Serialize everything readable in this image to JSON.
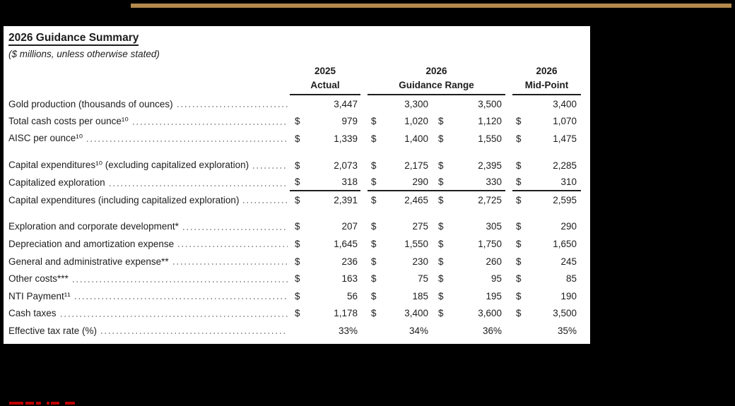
{
  "panel": {
    "title": "2026 Guidance Summary",
    "subtitle": "($ millions, unless otherwise stated)"
  },
  "table": {
    "currency_symbol": "$",
    "columns": [
      {
        "line1": "2025",
        "line2": "Actual"
      },
      {
        "line1": "2026",
        "line2": "Guidance Range"
      },
      {
        "line1": "2026",
        "line2": "Mid-Point"
      }
    ],
    "groups": [
      {
        "rows": [
          {
            "label": "Gold production (thousands of ounces)",
            "dollar": false,
            "underline": false,
            "values": [
              "3,447",
              "3,300",
              "3,500",
              "3,400"
            ]
          },
          {
            "label": "Total cash costs per ounce¹⁰",
            "dollar": true,
            "underline": false,
            "values": [
              "979",
              "1,020",
              "1,120",
              "1,070"
            ]
          },
          {
            "label": "AISC per ounce¹⁰",
            "dollar": true,
            "underline": false,
            "values": [
              "1,339",
              "1,400",
              "1,550",
              "1,475"
            ]
          }
        ]
      },
      {
        "rows": [
          {
            "label": "Capital expenditures¹⁰ (excluding capitalized exploration)",
            "dollar": true,
            "underline": false,
            "values": [
              "2,073",
              "2,175",
              "2,395",
              "2,285"
            ]
          },
          {
            "label": "Capitalized exploration",
            "dollar": true,
            "underline": true,
            "values": [
              "318",
              "290",
              "330",
              "310"
            ]
          },
          {
            "label": "Capital expenditures (including capitalized exploration)",
            "dollar": true,
            "underline": false,
            "values": [
              "2,391",
              "2,465",
              "2,725",
              "2,595"
            ]
          }
        ]
      },
      {
        "rows": [
          {
            "label": "Exploration and corporate development*",
            "dollar": true,
            "underline": false,
            "values": [
              "207",
              "275",
              "305",
              "290"
            ]
          },
          {
            "label": "Depreciation and amortization expense",
            "dollar": true,
            "underline": false,
            "values": [
              "1,645",
              "1,550",
              "1,750",
              "1,650"
            ]
          },
          {
            "label": "General and administrative expense**",
            "dollar": true,
            "underline": false,
            "values": [
              "236",
              "230",
              "260",
              "245"
            ]
          },
          {
            "label": "Other costs***",
            "dollar": true,
            "underline": false,
            "values": [
              "163",
              "75",
              "95",
              "85"
            ]
          },
          {
            "label": "NTI Payment¹¹",
            "dollar": true,
            "underline": false,
            "values": [
              "56",
              "185",
              "195",
              "190"
            ]
          },
          {
            "label": "Cash taxes",
            "dollar": true,
            "underline": false,
            "values": [
              "1,178",
              "3,400",
              "3,600",
              "3,500"
            ]
          },
          {
            "label": "Effective tax rate (%)",
            "dollar": false,
            "underline": false,
            "values": [
              "33%",
              "34%",
              "36%",
              "35%"
            ]
          }
        ]
      }
    ]
  },
  "colors": {
    "background": "#000000",
    "panel": "#ffffff",
    "text": "#1d1d1d",
    "top_bar": "#b48a4e",
    "red_fragments": "#c00000",
    "dot_leader": "#9a9a9a"
  }
}
